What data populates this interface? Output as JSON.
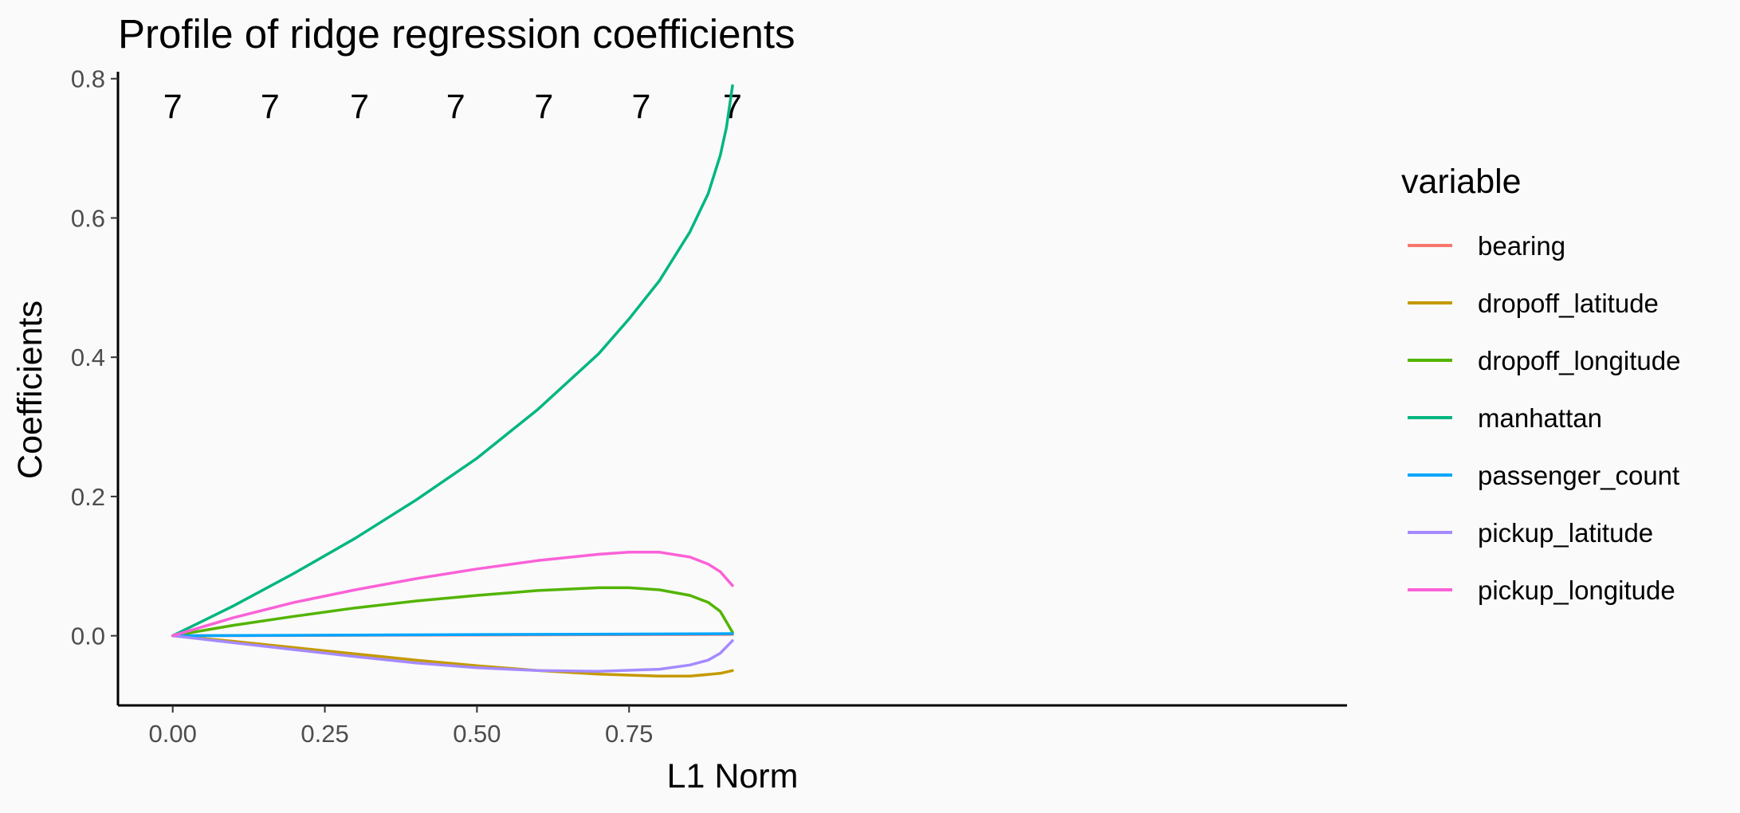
{
  "chart_data": {
    "type": "line",
    "title": "Profile of ridge regression coefficients",
    "xlabel": "L1 Norm",
    "ylabel": "Coefficients",
    "xlim": [
      -0.09,
      1.93
    ],
    "ylim": [
      -0.1,
      0.81
    ],
    "x_ticks": [
      0.0,
      0.25,
      0.5,
      0.75
    ],
    "x_tick_labels": [
      "0.00",
      "0.25",
      "0.50",
      "0.75"
    ],
    "y_ticks": [
      0.0,
      0.2,
      0.4,
      0.6,
      0.8
    ],
    "y_tick_labels": [
      "0.0",
      "0.2",
      "0.4",
      "0.6",
      "0.8"
    ],
    "top_axis": {
      "x": [
        0.0,
        0.16,
        0.307,
        0.465,
        0.61,
        0.77,
        0.92
      ],
      "labels": [
        "7",
        "7",
        "7",
        "7",
        "7",
        "7",
        "7"
      ]
    },
    "grid": false,
    "legend": {
      "title": "variable",
      "position": "right"
    },
    "series": [
      {
        "name": "bearing",
        "color": "#F8766D",
        "x": [
          0,
          0.92
        ],
        "y": [
          0,
          0.002
        ]
      },
      {
        "name": "dropoff_latitude",
        "color": "#C49A00",
        "x": [
          0,
          0.1,
          0.2,
          0.3,
          0.4,
          0.5,
          0.6,
          0.7,
          0.8,
          0.85,
          0.9,
          0.92
        ],
        "y": [
          0,
          -0.008,
          -0.017,
          -0.026,
          -0.035,
          -0.043,
          -0.05,
          -0.055,
          -0.058,
          -0.058,
          -0.054,
          -0.05
        ]
      },
      {
        "name": "dropoff_longitude",
        "color": "#53B400",
        "x": [
          0,
          0.1,
          0.2,
          0.3,
          0.4,
          0.5,
          0.6,
          0.7,
          0.75,
          0.8,
          0.85,
          0.88,
          0.9,
          0.92
        ],
        "y": [
          0,
          0.015,
          0.028,
          0.04,
          0.05,
          0.058,
          0.065,
          0.069,
          0.069,
          0.066,
          0.058,
          0.048,
          0.035,
          0.005
        ]
      },
      {
        "name": "manhattan",
        "color": "#00B680",
        "x": [
          0,
          0.1,
          0.2,
          0.3,
          0.4,
          0.5,
          0.6,
          0.7,
          0.75,
          0.8,
          0.85,
          0.88,
          0.9,
          0.91,
          0.92
        ],
        "y": [
          0,
          0.043,
          0.09,
          0.14,
          0.195,
          0.255,
          0.325,
          0.405,
          0.455,
          0.51,
          0.58,
          0.635,
          0.69,
          0.73,
          0.79
        ]
      },
      {
        "name": "passenger_count",
        "color": "#00A6FF",
        "x": [
          0,
          0.92
        ],
        "y": [
          0,
          0.003
        ]
      },
      {
        "name": "pickup_latitude",
        "color": "#A58AFF",
        "x": [
          0,
          0.1,
          0.2,
          0.3,
          0.4,
          0.5,
          0.6,
          0.7,
          0.8,
          0.85,
          0.88,
          0.9,
          0.92
        ],
        "y": [
          0,
          -0.01,
          -0.02,
          -0.03,
          -0.039,
          -0.046,
          -0.05,
          -0.051,
          -0.048,
          -0.042,
          -0.035,
          -0.025,
          -0.007
        ]
      },
      {
        "name": "pickup_longitude",
        "color": "#FB61D7",
        "x": [
          0,
          0.1,
          0.2,
          0.3,
          0.4,
          0.5,
          0.6,
          0.7,
          0.75,
          0.8,
          0.85,
          0.88,
          0.9,
          0.92
        ],
        "y": [
          0,
          0.026,
          0.048,
          0.066,
          0.082,
          0.096,
          0.108,
          0.117,
          0.12,
          0.12,
          0.113,
          0.103,
          0.092,
          0.072
        ]
      }
    ]
  }
}
